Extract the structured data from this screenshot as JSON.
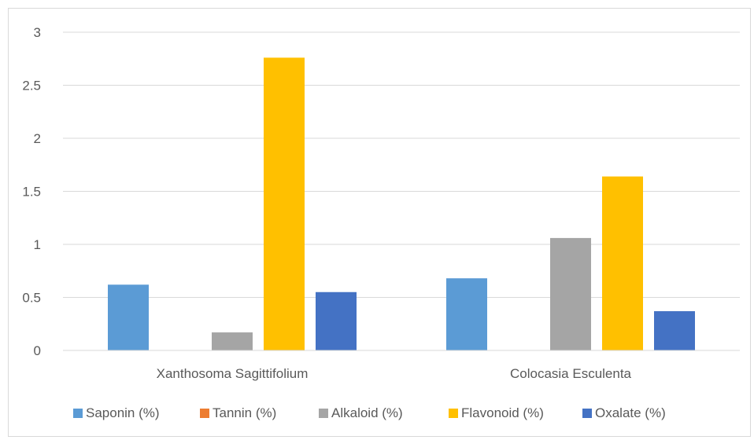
{
  "chart_data": {
    "type": "bar",
    "title": "",
    "xlabel": "",
    "ylabel": "",
    "ylim": [
      0,
      3
    ],
    "yticks": [
      "0",
      "0.5",
      "1",
      "1.5",
      "2",
      "2.5",
      "3"
    ],
    "ytick_values": [
      0,
      0.5,
      1,
      1.5,
      2,
      2.5,
      3
    ],
    "grid": true,
    "legend_position": "bottom",
    "categories": [
      "Xanthosoma Sagittifolium",
      "Colocasia Esculenta"
    ],
    "series": [
      {
        "name": "Saponin (%)",
        "color": "#5B9BD5",
        "values": [
          0.62,
          0.68
        ]
      },
      {
        "name": "Tannin (%)",
        "color": "#ED7D31",
        "values": [
          0,
          0
        ]
      },
      {
        "name": "Alkaloid (%)",
        "color": "#A5A5A5",
        "values": [
          0.17,
          1.06
        ]
      },
      {
        "name": "Flavonoid (%)",
        "color": "#FFC000",
        "values": [
          2.76,
          1.64
        ]
      },
      {
        "name": "Oxalate (%)",
        "color": "#4472C4",
        "values": [
          0.55,
          0.37
        ]
      }
    ]
  }
}
